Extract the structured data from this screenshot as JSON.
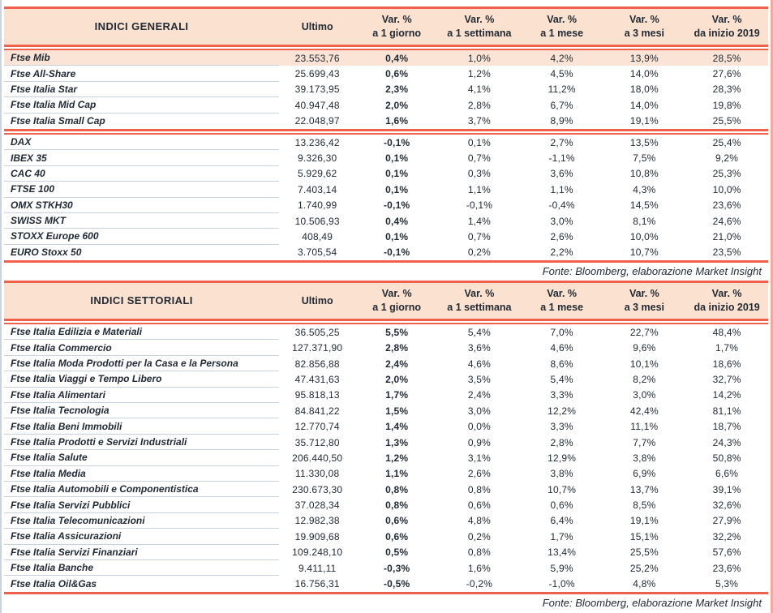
{
  "colors": {
    "accent_red": "#f0604a",
    "header_bg": "#fbe1cf",
    "highlight_bg": "#fbe4d5",
    "text": "#222b35",
    "row_divider": "#c9d3de",
    "frame_left": "#ccd4e1",
    "frame_right": "#f4a99d"
  },
  "chart_data": [
    {
      "type": "table",
      "title": "INDICI GENERALI",
      "ultimo_header": "Ultimo",
      "var_headers": [
        {
          "line1": "Var. %",
          "line2": "a 1 giorno"
        },
        {
          "line1": "Var. %",
          "line2": "a 1 settimana"
        },
        {
          "line1": "Var. %",
          "line2": "a 1 mese"
        },
        {
          "line1": "Var. %",
          "line2": "a 3 mesi"
        },
        {
          "line1": "Var. %",
          "line2": "da inizio 2019"
        }
      ],
      "groups": [
        {
          "rows": [
            {
              "label": "Ftse Mib",
              "ultimo": "23.553,76",
              "var_1d": "0,4%",
              "var_1w": "1,0%",
              "var_1m": "4,2%",
              "var_3m": "13,9%",
              "var_ytd": "28,5%",
              "highlight": true
            },
            {
              "label": "Ftse All-Share",
              "ultimo": "25.699,43",
              "var_1d": "0,6%",
              "var_1w": "1,2%",
              "var_1m": "4,5%",
              "var_3m": "14,0%",
              "var_ytd": "27,6%"
            },
            {
              "label": "Ftse Italia Star",
              "ultimo": "39.173,95",
              "var_1d": "2,3%",
              "var_1w": "4,1%",
              "var_1m": "11,2%",
              "var_3m": "18,0%",
              "var_ytd": "28,3%"
            },
            {
              "label": "Ftse Italia Mid Cap",
              "ultimo": "40.947,48",
              "var_1d": "2,0%",
              "var_1w": "2,8%",
              "var_1m": "6,7%",
              "var_3m": "14,0%",
              "var_ytd": "19,8%"
            },
            {
              "label": "Ftse Italia Small Cap",
              "ultimo": "22.048,97",
              "var_1d": "1,6%",
              "var_1w": "3,7%",
              "var_1m": "8,9%",
              "var_3m": "19,1%",
              "var_ytd": "25,5%"
            }
          ]
        },
        {
          "rows": [
            {
              "label": "DAX",
              "ultimo": "13.236,42",
              "var_1d": "-0,1%",
              "var_1w": "0,1%",
              "var_1m": "2,7%",
              "var_3m": "13,5%",
              "var_ytd": "25,4%"
            },
            {
              "label": "IBEX 35",
              "ultimo": "9.326,30",
              "var_1d": "0,1%",
              "var_1w": "0,7%",
              "var_1m": "-1,1%",
              "var_3m": "7,5%",
              "var_ytd": "9,2%"
            },
            {
              "label": "CAC 40",
              "ultimo": "5.929,62",
              "var_1d": "0,1%",
              "var_1w": "0,3%",
              "var_1m": "3,6%",
              "var_3m": "10,8%",
              "var_ytd": "25,3%"
            },
            {
              "label": "FTSE 100",
              "ultimo": "7.403,14",
              "var_1d": "0,1%",
              "var_1w": "1,1%",
              "var_1m": "1,1%",
              "var_3m": "4,3%",
              "var_ytd": "10,0%"
            },
            {
              "label": "OMX STKH30",
              "ultimo": "1.740,99",
              "var_1d": "-0,1%",
              "var_1w": "-0,1%",
              "var_1m": "-0,4%",
              "var_3m": "14,5%",
              "var_ytd": "23,6%"
            },
            {
              "label": "SWISS MKT",
              "ultimo": "10.506,93",
              "var_1d": "0,4%",
              "var_1w": "1,4%",
              "var_1m": "3,0%",
              "var_3m": "8,1%",
              "var_ytd": "24,6%"
            },
            {
              "label": "STOXX Europe 600",
              "ultimo": "408,49",
              "var_1d": "0,1%",
              "var_1w": "0,7%",
              "var_1m": "2,6%",
              "var_3m": "10,0%",
              "var_ytd": "21,0%"
            },
            {
              "label": "EURO Stoxx 50",
              "ultimo": "3.705,54",
              "var_1d": "-0,1%",
              "var_1w": "0,2%",
              "var_1m": "2,2%",
              "var_3m": "10,7%",
              "var_ytd": "23,5%"
            }
          ]
        }
      ],
      "source_note": "Fonte: Bloomberg, elaborazione Market Insight"
    },
    {
      "type": "table",
      "title": "INDICI SETTORIALI",
      "ultimo_header": "Ultimo",
      "var_headers": [
        {
          "line1": "Var. %",
          "line2": "a 1 giorno"
        },
        {
          "line1": "Var. %",
          "line2": "a 1 settimana"
        },
        {
          "line1": "Var. %",
          "line2": "a 1 mese"
        },
        {
          "line1": "Var. %",
          "line2": "a 3 mesi"
        },
        {
          "line1": "Var. %",
          "line2": "da inizio 2019"
        }
      ],
      "groups": [
        {
          "rows": [
            {
              "label": "Ftse Italia Edilizia e Materiali",
              "ultimo": "36.505,25",
              "var_1d": "5,5%",
              "var_1w": "5,4%",
              "var_1m": "7,0%",
              "var_3m": "22,7%",
              "var_ytd": "48,4%"
            },
            {
              "label": "Ftse Italia Commercio",
              "ultimo": "127.371,90",
              "var_1d": "2,8%",
              "var_1w": "3,6%",
              "var_1m": "4,6%",
              "var_3m": "9,6%",
              "var_ytd": "1,7%"
            },
            {
              "label": "Ftse Italia Moda Prodotti per la Casa e la Persona",
              "ultimo": "82.856,88",
              "var_1d": "2,4%",
              "var_1w": "4,6%",
              "var_1m": "8,6%",
              "var_3m": "10,1%",
              "var_ytd": "18,6%"
            },
            {
              "label": "Ftse Italia Viaggi e Tempo Libero",
              "ultimo": "47.431,63",
              "var_1d": "2,0%",
              "var_1w": "3,5%",
              "var_1m": "5,4%",
              "var_3m": "8,2%",
              "var_ytd": "32,7%"
            },
            {
              "label": "Ftse Italia Alimentari",
              "ultimo": "95.818,13",
              "var_1d": "1,7%",
              "var_1w": "2,4%",
              "var_1m": "3,3%",
              "var_3m": "3,0%",
              "var_ytd": "14,2%"
            },
            {
              "label": "Ftse Italia Tecnologia",
              "ultimo": "84.841,22",
              "var_1d": "1,5%",
              "var_1w": "3,0%",
              "var_1m": "12,2%",
              "var_3m": "42,4%",
              "var_ytd": "81,1%"
            },
            {
              "label": "Ftse Italia Beni Immobili",
              "ultimo": "12.770,74",
              "var_1d": "1,4%",
              "var_1w": "0,0%",
              "var_1m": "3,3%",
              "var_3m": "11,1%",
              "var_ytd": "18,7%"
            },
            {
              "label": "Ftse Italia Prodotti e Servizi Industriali",
              "ultimo": "35.712,80",
              "var_1d": "1,3%",
              "var_1w": "0,9%",
              "var_1m": "2,8%",
              "var_3m": "7,7%",
              "var_ytd": "24,3%"
            },
            {
              "label": "Ftse Italia Salute",
              "ultimo": "206.440,50",
              "var_1d": "1,2%",
              "var_1w": "3,1%",
              "var_1m": "12,9%",
              "var_3m": "3,8%",
              "var_ytd": "50,8%"
            },
            {
              "label": "Ftse Italia Media",
              "ultimo": "11.330,08",
              "var_1d": "1,1%",
              "var_1w": "2,6%",
              "var_1m": "3,8%",
              "var_3m": "6,9%",
              "var_ytd": "6,6%"
            },
            {
              "label": "Ftse Italia Automobili e Componentistica",
              "ultimo": "230.673,30",
              "var_1d": "0,8%",
              "var_1w": "0,8%",
              "var_1m": "10,7%",
              "var_3m": "13,7%",
              "var_ytd": "39,1%"
            },
            {
              "label": "Ftse Italia Servizi Pubblici",
              "ultimo": "37.028,34",
              "var_1d": "0,8%",
              "var_1w": "0,6%",
              "var_1m": "0,6%",
              "var_3m": "8,5%",
              "var_ytd": "32,6%"
            },
            {
              "label": "Ftse Italia Telecomunicazioni",
              "ultimo": "12.982,38",
              "var_1d": "0,6%",
              "var_1w": "4,8%",
              "var_1m": "6,4%",
              "var_3m": "19,1%",
              "var_ytd": "27,9%"
            },
            {
              "label": "Ftse Italia Assicurazioni",
              "ultimo": "19.909,68",
              "var_1d": "0,6%",
              "var_1w": "0,2%",
              "var_1m": "1,7%",
              "var_3m": "15,1%",
              "var_ytd": "32,2%"
            },
            {
              "label": "Ftse Italia Servizi Finanziari",
              "ultimo": "109.248,10",
              "var_1d": "0,5%",
              "var_1w": "0,8%",
              "var_1m": "13,4%",
              "var_3m": "25,5%",
              "var_ytd": "57,6%"
            },
            {
              "label": "Ftse Italia Banche",
              "ultimo": "9.411,11",
              "var_1d": "-0,3%",
              "var_1w": "1,6%",
              "var_1m": "5,9%",
              "var_3m": "25,2%",
              "var_ytd": "23,6%"
            },
            {
              "label": "Ftse Italia Oil&Gas",
              "ultimo": "16.756,31",
              "var_1d": "-0,5%",
              "var_1w": "-0,2%",
              "var_1m": "-1,0%",
              "var_3m": "4,8%",
              "var_ytd": "5,3%"
            }
          ]
        }
      ],
      "source_note": "Fonte: Bloomberg, elaborazione Market Insight"
    }
  ]
}
